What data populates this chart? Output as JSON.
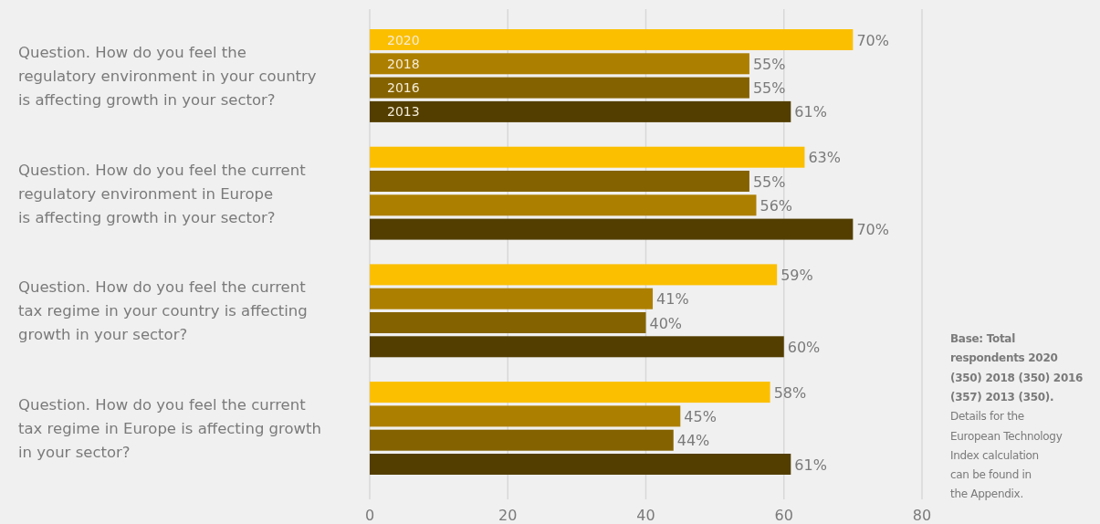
{
  "chart_data": {
    "type": "bar",
    "orientation": "horizontal",
    "categories": [
      "Question. How do you feel the\nregulatory environment in your country\nis affecting growth in your sector?",
      "Question. How do you feel the current\nregulatory environment in Europe\nis affecting growth in your sector?",
      "Question. How do you feel the current\ntax regime in your country is affecting\ngrowth in your sector?",
      "Question. How do you feel the current\ntax regime in Europe is affecting growth\nin your sector?"
    ],
    "series": [
      {
        "name": "2020",
        "color": "#fbbf00",
        "values": [
          70,
          63,
          59,
          58
        ],
        "value_labels": [
          "70%",
          "63%",
          "59%",
          "58%"
        ]
      },
      {
        "name": "2018",
        "colors": [
          "#ad7f00",
          "#846200",
          "#ad7f00",
          "#ad7f00"
        ],
        "values": [
          55,
          55,
          41,
          45
        ],
        "value_labels": [
          "55%",
          "55%",
          "41%",
          "45%"
        ]
      },
      {
        "name": "2016",
        "colors": [
          "#846200",
          "#ad7f00",
          "#846200",
          "#846200"
        ],
        "values": [
          55,
          56,
          40,
          44
        ],
        "value_labels": [
          "55%",
          "56%",
          "40%",
          "44%"
        ]
      },
      {
        "name": "2013",
        "color": "#533e00",
        "values": [
          61,
          70,
          60,
          61
        ],
        "value_labels": [
          "61%",
          "70%",
          "60%",
          "61%"
        ]
      }
    ],
    "xlim": [
      0,
      80
    ],
    "xticks": [
      0,
      20,
      40,
      60,
      80
    ],
    "grid": "x",
    "legend": false,
    "annotations": [
      "Base: Total\nrespondents 2020\n(350) 2018 (350) 2016\n(357) 2013 (350).",
      "Details for the\nEuropean Technology\nIndex calculation\ncan be found in\nthe Appendix."
    ]
  }
}
